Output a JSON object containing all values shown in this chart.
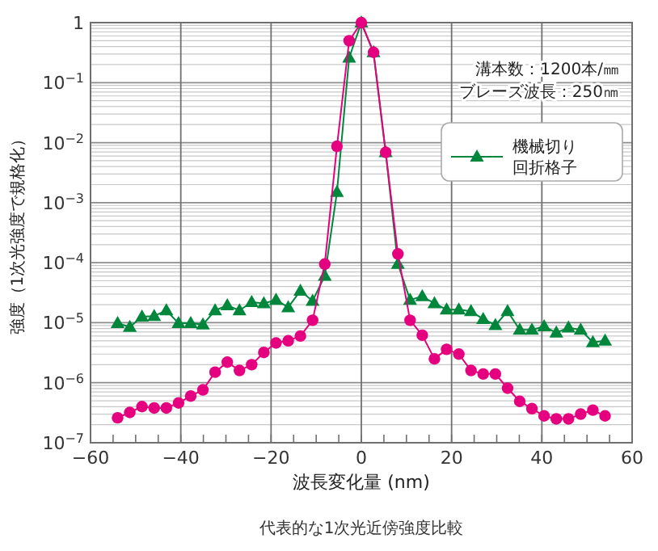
{
  "chart_data": {
    "type": "line",
    "xlabel": "波長変化量 (nm)",
    "ylabel": "強度（1次光強度で規格化）",
    "annotations": [
      "溝本数：1200本/㎜",
      "ブレーズ波長：250㎚",
      "代表的な1次光近傍強度比較"
    ],
    "x": [
      -54,
      -51.3,
      -48.6,
      -45.9,
      -43.2,
      -40.5,
      -37.8,
      -35.1,
      -32.4,
      -29.7,
      -27,
      -24.3,
      -21.6,
      -18.9,
      -16.2,
      -13.5,
      -10.8,
      -8.1,
      -5.4,
      -2.7,
      0,
      2.7,
      5.4,
      8.1,
      10.8,
      13.5,
      16.2,
      18.9,
      21.6,
      24.3,
      27,
      29.7,
      32.4,
      35.1,
      37.8,
      40.5,
      43.2,
      45.9,
      48.6,
      51.3,
      54
    ],
    "series": [
      {
        "color": "#e5007f",
        "marker": "circle",
        "values": [
          2.6e-07,
          3.2e-07,
          4e-07,
          3.8e-07,
          3.8e-07,
          4.6e-07,
          6e-07,
          7.6e-07,
          1.5e-06,
          2.2e-06,
          1.6e-06,
          2e-06,
          3.2e-06,
          4.6e-06,
          5e-06,
          6e-06,
          1.1e-05,
          9.5e-05,
          0.0087,
          0.5,
          1,
          0.32,
          0.0069,
          0.00014,
          1.1e-05,
          6.2e-06,
          2.5e-06,
          3.6e-06,
          3e-06,
          1.6e-06,
          1.4e-06,
          1.4e-06,
          8.1e-07,
          4.9e-07,
          3.7e-07,
          2.8e-07,
          2.5e-07,
          2.5e-07,
          3e-07,
          3.5e-07,
          2.8e-07
        ]
      },
      {
        "name": "機械切り回折格子",
        "color": "#00873c",
        "marker": "triangle",
        "values": [
          9.8e-06,
          8.5e-06,
          1.26e-05,
          1.29e-05,
          1.6e-05,
          9.8e-06,
          9.8e-06,
          9.3e-06,
          1.6e-05,
          1.95e-05,
          1.6e-05,
          2.2e-05,
          2.1e-05,
          2.4e-05,
          1.8e-05,
          3.4e-05,
          2.3e-05,
          6e-05,
          0.0015,
          0.26,
          1,
          0.32,
          0.0069,
          9.5e-05,
          2.4e-05,
          2.75e-05,
          2.1e-05,
          1.65e-05,
          1.65e-05,
          1.55e-05,
          1.15e-05,
          9.1e-06,
          1.55e-05,
          7.6e-06,
          7.6e-06,
          8.7e-06,
          6.8e-06,
          8.3e-06,
          7.6e-06,
          4.7e-06,
          5e-06
        ]
      }
    ],
    "xlim": [
      -60,
      60
    ],
    "xticks": [
      {
        "value": -60,
        "label": "−60"
      },
      {
        "value": -40,
        "label": "−40"
      },
      {
        "value": -20,
        "label": "−20"
      },
      0,
      20,
      40,
      60
    ],
    "log": "y",
    "ylim": [
      1e-07,
      1
    ],
    "yticks": [
      {
        "value": 1e-07,
        "label": "10$^{−7}$"
      },
      {
        "value": 1e-06,
        "label": "10$^{−6}$"
      },
      {
        "value": 1e-05,
        "label": "10$^{−5}$"
      },
      {
        "value": 0.0001,
        "label": "10$^{−4}$"
      },
      {
        "value": 0.001,
        "label": "10$^{−3}$"
      },
      {
        "value": 0.01,
        "label": "10$^{−2}$"
      },
      {
        "value": 0.1,
        "label": "10$^{−1}$"
      },
      1
    ],
    "grid": true,
    "legend": "top right",
    "line_style": "solid"
  }
}
